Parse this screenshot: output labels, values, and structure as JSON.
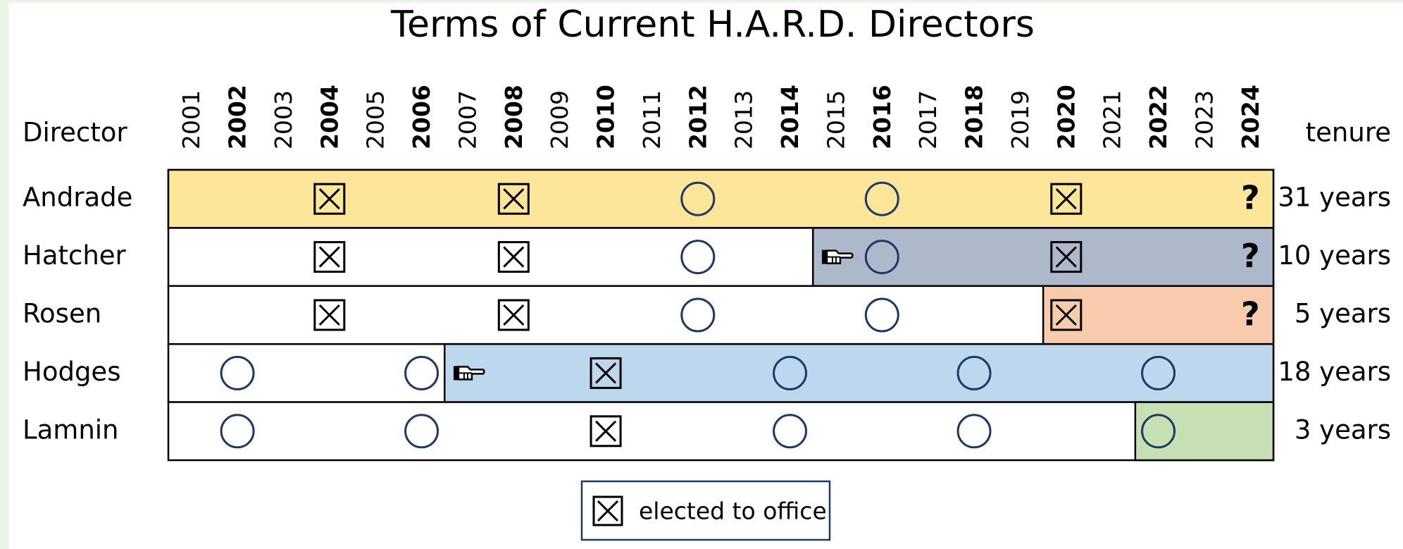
{
  "title": "Terms of Current H.A.R.D. Directors",
  "header": {
    "director": "Director",
    "tenure": "tenure",
    "years": [
      2001,
      2002,
      2003,
      2004,
      2005,
      2006,
      2007,
      2008,
      2009,
      2010,
      2011,
      2012,
      2013,
      2014,
      2015,
      2016,
      2017,
      2018,
      2019,
      2020,
      2021,
      2022,
      2023,
      2024
    ]
  },
  "rows": [
    {
      "name": "Andrade",
      "tenure": "31 years",
      "highlight": {
        "from": 2001,
        "color": "#fde59a"
      },
      "marks": [
        {
          "year": 2004,
          "kind": "elected"
        },
        {
          "year": 2008,
          "kind": "elected"
        },
        {
          "year": 2012,
          "kind": "term"
        },
        {
          "year": 2016,
          "kind": "term"
        },
        {
          "year": 2020,
          "kind": "elected"
        },
        {
          "year": 2024,
          "kind": "text",
          "label": "?"
        }
      ]
    },
    {
      "name": "Hatcher",
      "tenure": "10 years",
      "highlight": {
        "from": 2015,
        "color": "#adb8ca"
      },
      "marks": [
        {
          "year": 2004,
          "kind": "elected"
        },
        {
          "year": 2008,
          "kind": "elected"
        },
        {
          "year": 2012,
          "kind": "term"
        },
        {
          "year": 2015,
          "kind": "pointer"
        },
        {
          "year": 2016,
          "kind": "term"
        },
        {
          "year": 2020,
          "kind": "elected"
        },
        {
          "year": 2024,
          "kind": "text",
          "label": "?"
        }
      ]
    },
    {
      "name": "Rosen",
      "tenure": "5 years",
      "highlight": {
        "from": 2020,
        "color": "#f8cbad"
      },
      "marks": [
        {
          "year": 2004,
          "kind": "elected"
        },
        {
          "year": 2008,
          "kind": "elected"
        },
        {
          "year": 2012,
          "kind": "term"
        },
        {
          "year": 2016,
          "kind": "term"
        },
        {
          "year": 2020,
          "kind": "elected"
        },
        {
          "year": 2024,
          "kind": "text",
          "label": "?"
        }
      ]
    },
    {
      "name": "Hodges",
      "tenure": "18 years",
      "highlight": {
        "from": 2007,
        "color": "#bdd7ee"
      },
      "marks": [
        {
          "year": 2002,
          "kind": "term"
        },
        {
          "year": 2006,
          "kind": "term"
        },
        {
          "year": 2007,
          "kind": "pointer"
        },
        {
          "year": 2010,
          "kind": "elected"
        },
        {
          "year": 2014,
          "kind": "term"
        },
        {
          "year": 2018,
          "kind": "term"
        },
        {
          "year": 2022,
          "kind": "term"
        }
      ]
    },
    {
      "name": "Lamnin",
      "tenure": "3 years",
      "highlight": {
        "from": 2022,
        "color": "#c6e0b4"
      },
      "marks": [
        {
          "year": 2002,
          "kind": "term"
        },
        {
          "year": 2006,
          "kind": "term"
        },
        {
          "year": 2010,
          "kind": "elected"
        },
        {
          "year": 2014,
          "kind": "term"
        },
        {
          "year": 2018,
          "kind": "term"
        },
        {
          "year": 2022,
          "kind": "term"
        }
      ]
    }
  ],
  "legend": {
    "label": "elected to office"
  }
}
